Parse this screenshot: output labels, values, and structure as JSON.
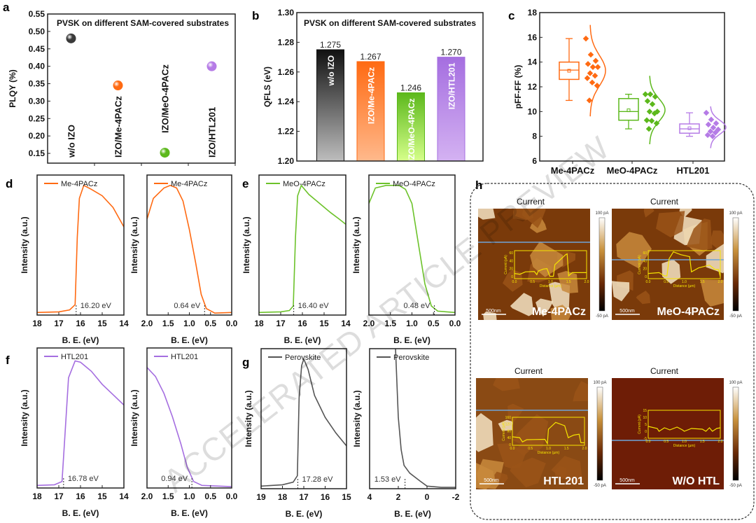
{
  "watermark": "ACCELERATED ARTICLE PREVIEW",
  "chart_data": [
    {
      "id": "a",
      "panel_label": "a",
      "type": "scatter",
      "title": "PVSK on different SAM-covered substrates",
      "ylabel": "PLQY (%)",
      "xlabel": "",
      "ylim": [
        0.122,
        0.55
      ],
      "yticks": [
        0.15,
        0.2,
        0.25,
        0.3,
        0.35,
        0.4,
        0.45,
        0.5,
        0.55
      ],
      "categories": [
        "w/o IZO",
        "IZO/Me-4PACz",
        "IZO/MeO-4PACz",
        "IZO/HTL201"
      ],
      "values": [
        0.48,
        0.345,
        0.152,
        0.4
      ],
      "colors": [
        "#3a3a3a",
        "#ff6a12",
        "#5cb81c",
        "#b57be6"
      ]
    },
    {
      "id": "b",
      "panel_label": "b",
      "type": "bar",
      "title": "PVSK on different SAM-covered substrates",
      "ylabel": "QFLS (eV)",
      "xlabel": "",
      "ylim": [
        1.2,
        1.3
      ],
      "yticks": [
        1.2,
        1.22,
        1.24,
        1.26,
        1.28,
        1.3
      ],
      "categories": [
        "w/o IZO",
        "IZO/Me-4PACz",
        "IZO/MeO-4PACz",
        "IZO/HTL201"
      ],
      "values": [
        1.275,
        1.267,
        1.246,
        1.27
      ],
      "data_labels": [
        "1.275",
        "1.267",
        "1.246",
        "1.270"
      ],
      "colors": [
        [
          "#111111",
          "#bdbdbd"
        ],
        [
          "#ff6a12",
          "#ffb98c"
        ],
        [
          "#5cb81c",
          "#d6ff8a"
        ],
        [
          "#a56ee0",
          "#d4b2f2"
        ]
      ]
    },
    {
      "id": "c",
      "panel_label": "c",
      "type": "box",
      "ylabel": "pFF-FF (%)",
      "xlabel": "",
      "ylim": [
        6,
        18
      ],
      "yticks": [
        6,
        8,
        10,
        12,
        14,
        16,
        18
      ],
      "categories": [
        "Me-4PACz",
        "MeO-4PACz",
        "HTL201"
      ],
      "colors": [
        "#ff6a12",
        "#5cb81c",
        "#b57be6"
      ],
      "boxes": [
        {
          "min": 10.9,
          "q1": 12.6,
          "median": 13.35,
          "q3": 14.0,
          "max": 15.9,
          "mean": 13.3,
          "points": [
            15.9,
            14.6,
            14.1,
            13.85,
            13.6,
            13.6,
            13.1,
            12.9,
            12.7,
            12.35,
            12.1,
            10.9
          ]
        },
        {
          "min": 8.6,
          "q1": 9.3,
          "median": 10.0,
          "q3": 11.05,
          "max": 11.4,
          "mean": 10.1,
          "points": [
            11.4,
            11.4,
            11.2,
            10.85,
            10.6,
            10.0,
            10.0,
            9.85,
            9.3,
            9.25,
            9.05,
            8.6
          ]
        },
        {
          "min": 8.0,
          "q1": 8.25,
          "median": 8.6,
          "q3": 9.0,
          "max": 9.9,
          "mean": 8.65,
          "points": [
            9.9,
            9.35,
            9.05,
            8.95,
            8.7,
            8.55,
            8.4,
            8.3,
            8.1,
            8.0
          ]
        }
      ]
    },
    {
      "id": "d1",
      "panel_label": "d",
      "type": "line",
      "xlabel": "B. E. (eV)",
      "ylabel": "Intensity (a.u.)",
      "xlim": [
        18,
        14
      ],
      "xticks": [
        18,
        17,
        16,
        15,
        14
      ],
      "ylim": [
        0,
        1.08
      ],
      "legend": "Me-4PACz",
      "color": "#ff6a12",
      "annotation": "16.20 eV",
      "onset": 16.2,
      "points": [
        [
          18,
          0.02
        ],
        [
          17,
          0.025
        ],
        [
          16.5,
          0.04
        ],
        [
          16.25,
          0.08
        ],
        [
          16.15,
          0.6
        ],
        [
          16.05,
          0.9
        ],
        [
          15.85,
          1.0
        ],
        [
          15.5,
          0.97
        ],
        [
          15,
          0.92
        ],
        [
          14.5,
          0.83
        ],
        [
          14.2,
          0.74
        ],
        [
          14,
          0.68
        ]
      ]
    },
    {
      "id": "d2",
      "panel_label": "",
      "type": "line",
      "xlabel": "B. E. (eV)",
      "ylabel": "Intensity (a.u.)",
      "xlim": [
        2,
        0
      ],
      "xticks": [
        2.0,
        1.5,
        1.0,
        0.5,
        0.0
      ],
      "ylim": [
        0,
        1.08
      ],
      "legend": "Me-4PACz",
      "color": "#ff6a12",
      "annotation": "0.64 eV",
      "onset": 0.64,
      "points": [
        [
          2,
          0.74
        ],
        [
          1.85,
          0.9
        ],
        [
          1.6,
          0.98
        ],
        [
          1.45,
          1.0
        ],
        [
          1.3,
          0.98
        ],
        [
          1.15,
          0.88
        ],
        [
          1.0,
          0.66
        ],
        [
          0.85,
          0.4
        ],
        [
          0.72,
          0.16
        ],
        [
          0.6,
          0.05
        ],
        [
          0.4,
          0.015
        ],
        [
          0,
          0.02
        ]
      ]
    },
    {
      "id": "e1",
      "panel_label": "e",
      "type": "line",
      "xlabel": "B. E. (eV)",
      "ylabel": "Intensity (a.u.)",
      "xlim": [
        18,
        14
      ],
      "xticks": [
        18,
        17,
        16,
        15,
        14
      ],
      "ylim": [
        0,
        1.08
      ],
      "legend": "MeO-4PACz",
      "color": "#6cc22a",
      "annotation": "16.40 eV",
      "onset": 16.4,
      "points": [
        [
          18,
          0.02
        ],
        [
          17,
          0.025
        ],
        [
          16.6,
          0.035
        ],
        [
          16.42,
          0.07
        ],
        [
          16.32,
          0.6
        ],
        [
          16.22,
          0.92
        ],
        [
          16.05,
          1.0
        ],
        [
          15.7,
          0.93
        ],
        [
          15.2,
          0.86
        ],
        [
          14.7,
          0.79
        ],
        [
          14.3,
          0.74
        ],
        [
          14,
          0.7
        ]
      ]
    },
    {
      "id": "e2",
      "panel_label": "",
      "type": "line",
      "xlabel": "B. E. (eV)",
      "ylabel": "Intensity (a.u.)",
      "xlim": [
        2,
        0
      ],
      "xticks": [
        2.0,
        1.5,
        1.0,
        0.5,
        0.0
      ],
      "ylim": [
        0,
        1.08
      ],
      "legend": "MeO-4PACz",
      "color": "#6cc22a",
      "annotation": "0.48 eV",
      "onset": 0.48,
      "points": [
        [
          2,
          0.86
        ],
        [
          1.85,
          0.98
        ],
        [
          1.6,
          1.0
        ],
        [
          1.3,
          1.0
        ],
        [
          1.15,
          0.97
        ],
        [
          1.0,
          0.86
        ],
        [
          0.85,
          0.55
        ],
        [
          0.7,
          0.24
        ],
        [
          0.55,
          0.07
        ],
        [
          0.4,
          0.03
        ],
        [
          0,
          0.02
        ]
      ]
    },
    {
      "id": "f1",
      "panel_label": "f",
      "type": "line",
      "xlabel": "B. E. (eV)",
      "ylabel": "Intensity (a.u.)",
      "xlim": [
        18,
        14
      ],
      "xticks": [
        18,
        17,
        16,
        15,
        14
      ],
      "ylim": [
        0,
        1.08
      ],
      "legend": "HTL201",
      "color": "#a56ee0",
      "annotation": "16.78 eV",
      "onset": 16.78,
      "points": [
        [
          18,
          0.02
        ],
        [
          17.2,
          0.025
        ],
        [
          16.85,
          0.05
        ],
        [
          16.72,
          0.4
        ],
        [
          16.55,
          0.85
        ],
        [
          16.25,
          0.98
        ],
        [
          16,
          0.97
        ],
        [
          15.5,
          0.9
        ],
        [
          15,
          0.8
        ],
        [
          14.5,
          0.72
        ],
        [
          14,
          0.64
        ]
      ]
    },
    {
      "id": "f2",
      "panel_label": "",
      "type": "line",
      "xlabel": "B. E. (eV)",
      "ylabel": "Intensity (a.u.)",
      "xlim": [
        2,
        0
      ],
      "xticks": [
        2.0,
        1.5,
        1.0,
        0.5,
        0.0
      ],
      "ylim": [
        0,
        1.08
      ],
      "legend": "HTL201",
      "color": "#a56ee0",
      "annotation": "0.94 eV",
      "onset": 0.94,
      "points": [
        [
          2,
          0.93
        ],
        [
          1.8,
          0.86
        ],
        [
          1.6,
          0.73
        ],
        [
          1.4,
          0.55
        ],
        [
          1.2,
          0.34
        ],
        [
          1.05,
          0.16
        ],
        [
          0.9,
          0.05
        ],
        [
          0.7,
          0.02
        ],
        [
          0,
          0.01
        ]
      ]
    },
    {
      "id": "g1",
      "panel_label": "g",
      "type": "line",
      "xlabel": "B. E. (eV)",
      "ylabel": "Intensity (a.u.)",
      "xlim": [
        19,
        15
      ],
      "xticks": [
        19,
        18,
        17,
        16,
        15
      ],
      "ylim": [
        0,
        1.08
      ],
      "legend": "Perovskite",
      "color": "#555555",
      "annotation": "17.28 eV",
      "onset": 17.28,
      "points": [
        [
          19,
          0.02
        ],
        [
          18,
          0.03
        ],
        [
          17.5,
          0.05
        ],
        [
          17.3,
          0.1
        ],
        [
          17.22,
          0.7
        ],
        [
          17.1,
          0.95
        ],
        [
          17,
          1.0
        ],
        [
          16.8,
          0.92
        ],
        [
          16.5,
          0.72
        ],
        [
          16,
          0.55
        ],
        [
          15.5,
          0.43
        ],
        [
          15,
          0.33
        ]
      ]
    },
    {
      "id": "g2",
      "panel_label": "",
      "type": "line",
      "xlabel": "B. E. (eV)",
      "ylabel": "Intensity (a.u.)",
      "xlim": [
        4,
        -2
      ],
      "xticks": [
        4,
        2,
        0,
        -2
      ],
      "ylim": [
        0,
        1.08
      ],
      "legend": "Perovskite",
      "color": "#555555",
      "annotation": "1.53 eV",
      "onset": 1.53,
      "points": [
        [
          2.2,
          1.1
        ],
        [
          2.0,
          0.55
        ],
        [
          1.8,
          0.3
        ],
        [
          1.6,
          0.18
        ],
        [
          1.2,
          0.12
        ],
        [
          0.5,
          0.06
        ],
        [
          0,
          0.02
        ],
        [
          -1,
          0.01
        ],
        [
          -2,
          0.01
        ]
      ]
    }
  ],
  "panel_h": {
    "label": "h",
    "maps": [
      {
        "title": "Current",
        "sample": "Me-4PACz",
        "scale_bar": "500nm",
        "cbar_max": "100 pA",
        "cbar_min": "-50 pA",
        "bg": "#7a3a0a",
        "profile": {
          "ylabel": "Current (pA)",
          "xlabel": "Distance (µm)",
          "yticks": [
            0,
            20,
            40,
            60
          ],
          "xticks": [
            "0.0",
            "0.5",
            "1.0",
            "1.5",
            "2.0"
          ],
          "ylim": [
            -5,
            65
          ],
          "points": [
            [
              0,
              8
            ],
            [
              0.15,
              6
            ],
            [
              0.3,
              12
            ],
            [
              0.55,
              13
            ],
            [
              0.62,
              5
            ],
            [
              0.66,
              14
            ],
            [
              0.8,
              19
            ],
            [
              0.9,
              20
            ],
            [
              0.98,
              1
            ],
            [
              1.08,
              1
            ],
            [
              1.12,
              30
            ],
            [
              1.3,
              45
            ],
            [
              1.42,
              55
            ],
            [
              1.46,
              57
            ],
            [
              1.5,
              2
            ],
            [
              1.6,
              10
            ],
            [
              2,
              10
            ]
          ]
        }
      },
      {
        "title": "Current",
        "sample": "MeO-4PACz",
        "scale_bar": "500nm",
        "cbar_max": "100 pA",
        "cbar_min": "-50 pA",
        "bg": "#7a3a0a",
        "profile": {
          "ylabel": "Current (pA)",
          "xlabel": "Distance (µm)",
          "yticks": [
            0,
            20,
            40,
            60
          ],
          "xticks": [
            "0.0",
            "0.5",
            "1.0",
            "1.5",
            "2.0"
          ],
          "ylim": [
            -5,
            65
          ],
          "points": [
            [
              0,
              8
            ],
            [
              0.3,
              10
            ],
            [
              0.45,
              2
            ],
            [
              0.52,
              2
            ],
            [
              0.58,
              45
            ],
            [
              0.7,
              62
            ],
            [
              0.9,
              55
            ],
            [
              1.15,
              50
            ],
            [
              1.2,
              12
            ],
            [
              1.4,
              22
            ],
            [
              1.7,
              29
            ],
            [
              1.85,
              18
            ],
            [
              1.95,
              18
            ],
            [
              2,
              0
            ]
          ]
        }
      },
      {
        "title": "Current",
        "sample": "HTL201",
        "scale_bar": "500nm",
        "cbar_max": "100 pA",
        "cbar_min": "-50 pA",
        "bg": "#8a4a14",
        "profile": {
          "ylabel": "Current (pA)",
          "xlabel": "Distance (µm)",
          "yticks": [
            0,
            40,
            80,
            120,
            160
          ],
          "xticks": [
            "0.0",
            "0.5",
            "1.0",
            "1.5",
            "2.0"
          ],
          "ylim": [
            -5,
            160
          ],
          "points": [
            [
              0,
              45
            ],
            [
              0.2,
              40
            ],
            [
              0.28,
              15
            ],
            [
              0.4,
              28
            ],
            [
              0.9,
              30
            ],
            [
              0.97,
              5
            ],
            [
              1.0,
              90
            ],
            [
              1.2,
              130
            ],
            [
              1.45,
              110
            ],
            [
              1.55,
              40
            ],
            [
              1.7,
              55
            ],
            [
              1.85,
              60
            ],
            [
              1.9,
              10
            ],
            [
              2,
              10
            ]
          ]
        }
      },
      {
        "title": "Current",
        "sample": "W/O HTL",
        "scale_bar": "500nm",
        "cbar_max": "100 pA",
        "cbar_min": "-50 pA",
        "bg": "#6e1d06",
        "profile": {
          "ylabel": "Current (pA)",
          "xlabel": "Distance (µm)",
          "yticks": [
            -5,
            0,
            5,
            10,
            15
          ],
          "xticks": [
            "0.0",
            "0.5",
            "1.0",
            "1.5",
            "2.0"
          ],
          "ylim": [
            -5,
            15
          ],
          "points": [
            [
              0,
              3.5
            ],
            [
              0.25,
              2
            ],
            [
              0.3,
              0
            ],
            [
              0.45,
              2.5
            ],
            [
              0.6,
              1
            ],
            [
              0.8,
              3
            ],
            [
              0.95,
              1
            ],
            [
              1.0,
              0
            ],
            [
              1.2,
              2
            ],
            [
              1.5,
              1.5
            ],
            [
              1.6,
              0
            ],
            [
              1.7,
              2.5
            ],
            [
              1.78,
              0
            ],
            [
              1.9,
              2
            ],
            [
              2,
              2.5
            ]
          ]
        }
      }
    ]
  }
}
